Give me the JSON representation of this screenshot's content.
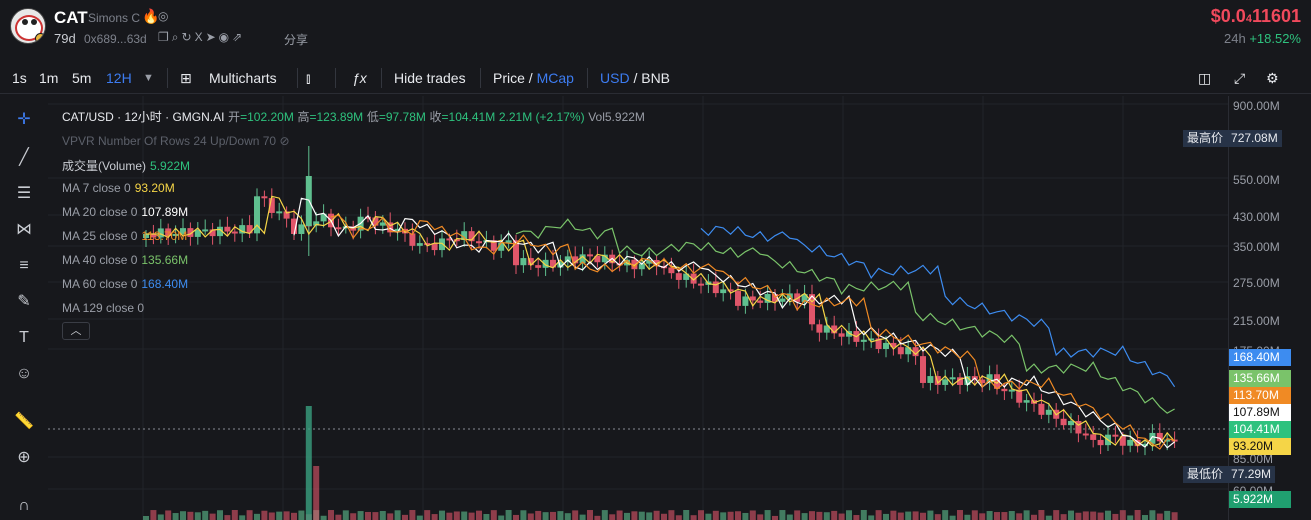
{
  "token": {
    "symbol": "CAT",
    "name": "Simons C",
    "age": "79d",
    "address": "0x689...63d",
    "share_label": "分享",
    "price_main": "$0.0",
    "price_sub": "4",
    "price_tail": "11601",
    "change_period": "24h",
    "change_value": "+18.52%"
  },
  "toolbar": {
    "intervals": [
      "1s",
      "1m",
      "5m",
      "12H"
    ],
    "multicharts": "Multicharts",
    "hide_trades": "Hide trades",
    "price": "Price",
    "mcap": "MCap",
    "usd": "USD",
    "bnb": "BNB",
    "slash": "/"
  },
  "legend": {
    "pair": "CAT/USD · 12小时 · GMGN.AI",
    "open_label": "开",
    "open": "=102.20M",
    "high_label": "高",
    "high": "=123.89M",
    "low_label": "低",
    "low": "=97.78M",
    "close_label": "收",
    "close": "=104.41M",
    "delta": "2.21M (+2.17%)",
    "vol": "Vol5.922M",
    "vpvr": "VPVR Number Of Rows 24 Up/Down 70",
    "volume_label": "成交量(Volume)",
    "volume_value": "5.922M",
    "ma": [
      {
        "label": "MA 7 close 0",
        "value": "93.20M",
        "color": "#f5d547"
      },
      {
        "label": "MA 20 close 0",
        "value": "107.89M",
        "color": "#ffffff"
      },
      {
        "label": "MA 25 close 0",
        "value": "113.70M",
        "color": "#f08a24"
      },
      {
        "label": "MA 40 close 0",
        "value": "135.66M",
        "color": "#7ac36a"
      },
      {
        "label": "MA 60 close 0",
        "value": "168.40M",
        "color": "#3d8cf0"
      },
      {
        "label": "MA 129 close 0",
        "value": "",
        "color": "#9a9ea7"
      }
    ]
  },
  "yaxis": {
    "ticks": [
      "900.00M",
      "550.00M",
      "430.00M",
      "350.00M",
      "275.00M",
      "215.00M",
      "175.00M",
      "85.00M",
      "60.00M"
    ],
    "tags": [
      {
        "text": "168.40M",
        "bg": "#3d8cf0",
        "fg": "#ffffff"
      },
      {
        "text": "135.66M",
        "bg": "#7ac36a",
        "fg": "#ffffff"
      },
      {
        "text": "113.70M",
        "bg": "#f08a24",
        "fg": "#ffffff"
      },
      {
        "text": "107.89M",
        "bg": "#ffffff",
        "fg": "#111111"
      },
      {
        "text": "104.41M",
        "bg": "#2ec27e",
        "fg": "#ffffff"
      },
      {
        "text": "93.20M",
        "bg": "#f5d547",
        "fg": "#111111"
      },
      {
        "text": "5.922M",
        "bg": "#20a070",
        "fg": "#ffffff"
      }
    ],
    "high_label": "最高价",
    "high_value": "727.08M",
    "low_label": "最低价",
    "low_value": "77.29M"
  },
  "colors": {
    "up": "#5fbf8f",
    "down": "#e0566a"
  }
}
